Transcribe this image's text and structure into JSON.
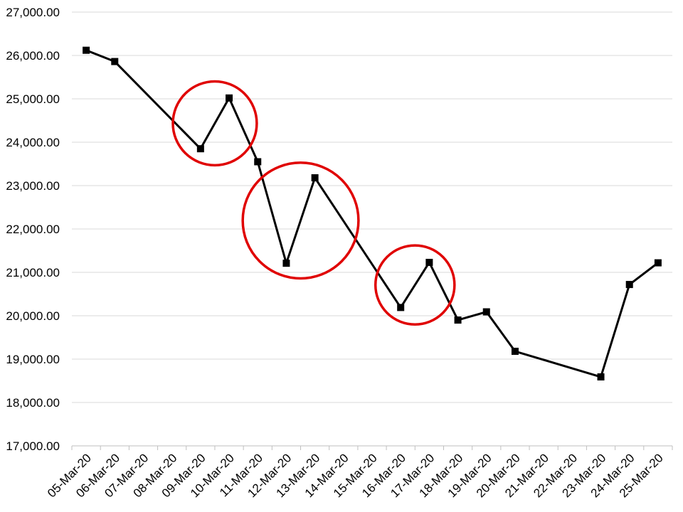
{
  "chart_data": {
    "type": "line",
    "title": "",
    "xlabel": "",
    "ylabel": "",
    "categories": [
      "05-Mar-20",
      "06-Mar-20",
      "07-Mar-20",
      "08-Mar-20",
      "09-Mar-20",
      "10-Mar-20",
      "11-Mar-20",
      "12-Mar-20",
      "13-Mar-20",
      "14-Mar-20",
      "15-Mar-20",
      "16-Mar-20",
      "17-Mar-20",
      "18-Mar-20",
      "19-Mar-20",
      "20-Mar-20",
      "21-Mar-20",
      "22-Mar-20",
      "23-Mar-20",
      "24-Mar-20",
      "25-Mar-20"
    ],
    "points": [
      {
        "x": "05-Mar-20",
        "y": 26120
      },
      {
        "x": "06-Mar-20",
        "y": 25860
      },
      {
        "x": "09-Mar-20",
        "y": 23850
      },
      {
        "x": "10-Mar-20",
        "y": 25020
      },
      {
        "x": "11-Mar-20",
        "y": 23550
      },
      {
        "x": "12-Mar-20",
        "y": 21210
      },
      {
        "x": "13-Mar-20",
        "y": 23180
      },
      {
        "x": "16-Mar-20",
        "y": 20190
      },
      {
        "x": "17-Mar-20",
        "y": 21230
      },
      {
        "x": "18-Mar-20",
        "y": 19900
      },
      {
        "x": "19-Mar-20",
        "y": 20090
      },
      {
        "x": "20-Mar-20",
        "y": 19180
      },
      {
        "x": "23-Mar-20",
        "y": 18590
      },
      {
        "x": "24-Mar-20",
        "y": 20720
      },
      {
        "x": "25-Mar-20",
        "y": 21220
      }
    ],
    "yticks": [
      17000,
      18000,
      19000,
      20000,
      21000,
      22000,
      23000,
      24000,
      25000,
      26000,
      27000
    ],
    "ytick_labels": [
      "17,000.00",
      "18,000.00",
      "19,000.00",
      "20,000.00",
      "21,000.00",
      "22,000.00",
      "23,000.00",
      "24,000.00",
      "25,000.00",
      "26,000.00",
      "27,000.00"
    ],
    "ylim": [
      17000,
      27000
    ],
    "grid": true,
    "legend": "none",
    "line_color": "#000000",
    "marker": "square",
    "annotations": [
      {
        "type": "circle",
        "color": "#e00000",
        "around": [
          "09-Mar-20",
          "10-Mar-20"
        ]
      },
      {
        "type": "circle",
        "color": "#e00000",
        "around": [
          "12-Mar-20",
          "13-Mar-20"
        ]
      },
      {
        "type": "circle",
        "color": "#e00000",
        "around": [
          "16-Mar-20",
          "17-Mar-20"
        ]
      }
    ]
  }
}
